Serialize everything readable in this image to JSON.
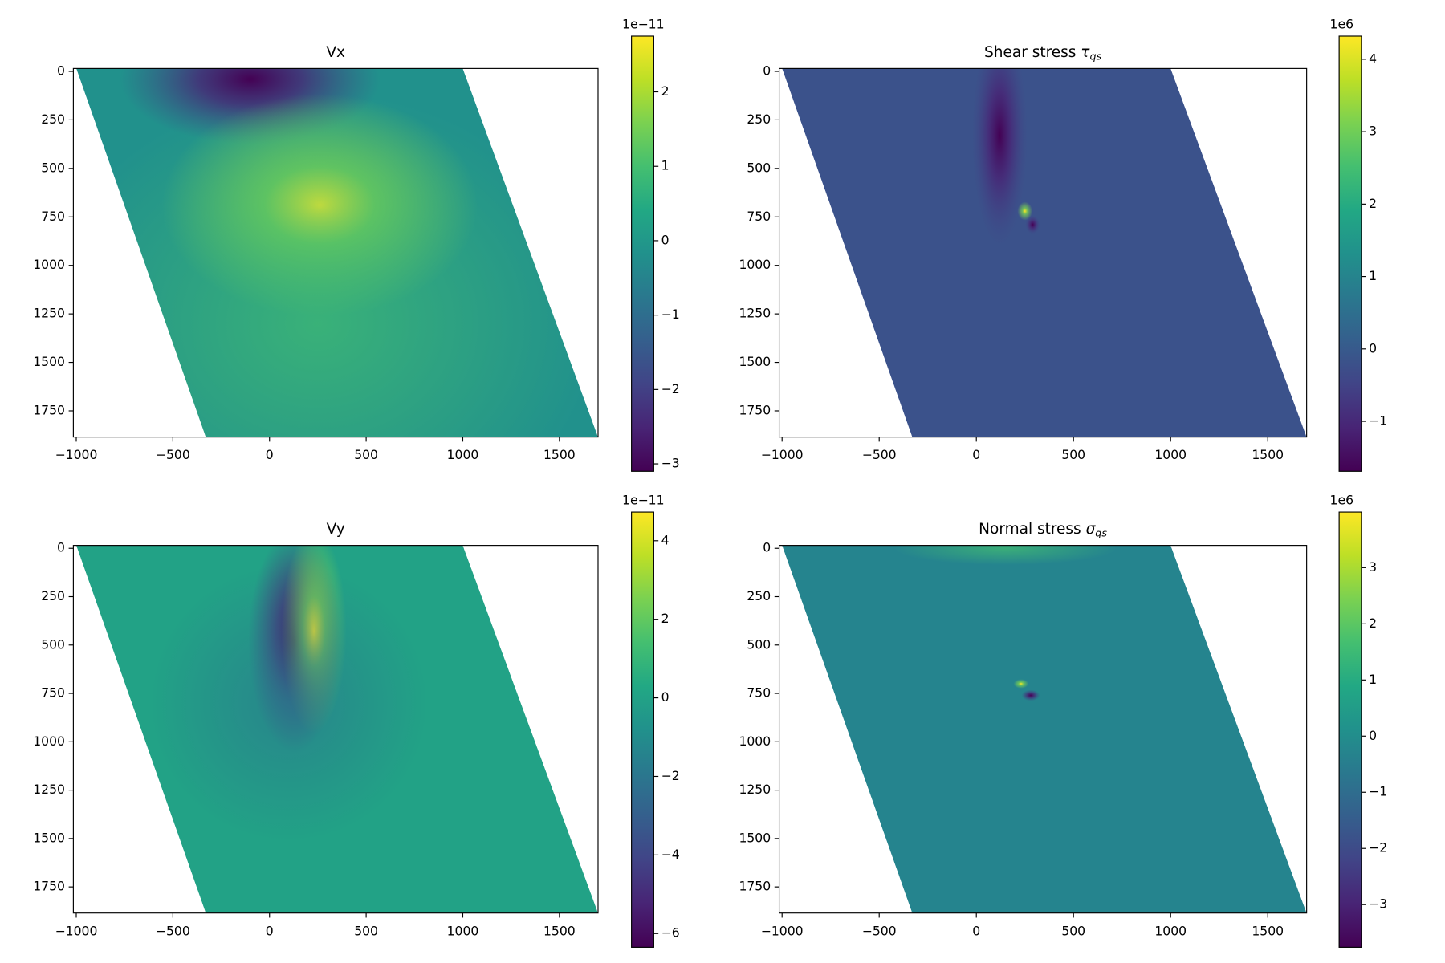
{
  "chart_data": [
    {
      "type": "heatmap",
      "title": "Vx",
      "xlim": [
        -1015,
        1700
      ],
      "xticks": [
        {
          "value": -1000,
          "label": "−1000"
        },
        {
          "value": -500,
          "label": "−500"
        },
        0,
        500,
        1000,
        1500
      ],
      "ylim": [
        1885,
        -15
      ],
      "yticks": [
        0,
        250,
        500,
        750,
        1000,
        1250,
        1500,
        1750
      ],
      "colorbar_offset": "1e−11",
      "clim": [
        -3.1,
        2.75
      ],
      "cticks": [
        {
          "value": -3,
          "label": "−3"
        },
        {
          "value": -2,
          "label": "−2"
        },
        {
          "value": -1,
          "label": "−1"
        },
        0,
        1,
        2
      ]
    },
    {
      "type": "heatmap",
      "title": "Shear stress ",
      "title_symbol": "τ",
      "title_subscript": "qs",
      "xlim": [
        -1015,
        1700
      ],
      "xticks": [
        {
          "value": -1000,
          "label": "−1000"
        },
        {
          "value": -500,
          "label": "−500"
        },
        0,
        500,
        1000,
        1500
      ],
      "ylim": [
        1885,
        -15
      ],
      "yticks": [
        0,
        250,
        500,
        750,
        1000,
        1250,
        1500,
        1750
      ],
      "colorbar_offset": "1e6",
      "clim": [
        -1.69,
        4.32
      ],
      "cticks": [
        {
          "value": -1,
          "label": "−1"
        },
        0,
        1,
        2,
        3,
        4
      ]
    },
    {
      "type": "heatmap",
      "title": "Vy",
      "xlim": [
        -1015,
        1700
      ],
      "xticks": [
        {
          "value": -1000,
          "label": "−1000"
        },
        {
          "value": -500,
          "label": "−500"
        },
        0,
        500,
        1000,
        1500
      ],
      "ylim": [
        1885,
        -15
      ],
      "yticks": [
        0,
        250,
        500,
        750,
        1000,
        1250,
        1500,
        1750
      ],
      "colorbar_offset": "1e−11",
      "clim": [
        -6.35,
        4.73
      ],
      "cticks": [
        {
          "value": -6,
          "label": "−6"
        },
        {
          "value": -4,
          "label": "−4"
        },
        {
          "value": -2,
          "label": "−2"
        },
        0,
        2,
        4
      ]
    },
    {
      "type": "heatmap",
      "title": "Normal stress ",
      "title_symbol": "σ",
      "title_subscript": "qs",
      "xlim": [
        -1015,
        1700
      ],
      "xticks": [
        {
          "value": -1000,
          "label": "−1000"
        },
        {
          "value": -500,
          "label": "−500"
        },
        0,
        500,
        1000,
        1500
      ],
      "ylim": [
        1885,
        -15
      ],
      "yticks": [
        0,
        250,
        500,
        750,
        1000,
        1250,
        1500,
        1750
      ],
      "colorbar_offset": "1e6",
      "clim": [
        -3.76,
        3.99
      ],
      "cticks": [
        {
          "value": -3,
          "label": "−3"
        },
        {
          "value": -2,
          "label": "−2"
        },
        {
          "value": -1,
          "label": "−1"
        },
        0,
        1,
        2,
        3
      ]
    }
  ]
}
